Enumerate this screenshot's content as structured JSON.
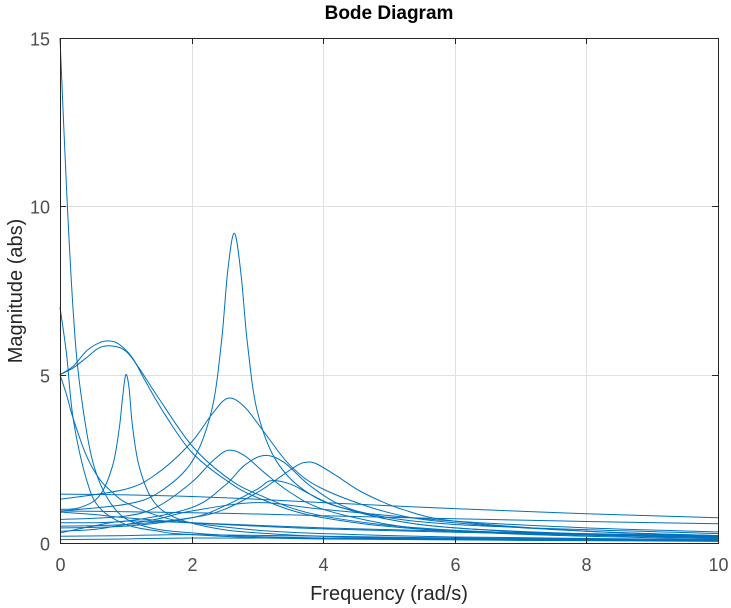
{
  "chart_data": {
    "type": "line",
    "title": "Bode Diagram",
    "xlabel": "Frequency  (rad/s)",
    "ylabel": "Magnitude (abs)",
    "xlim": [
      0,
      10
    ],
    "ylim": [
      0,
      15
    ],
    "xticks": [
      0,
      2,
      4,
      6,
      8,
      10
    ],
    "yticks": [
      0,
      5,
      10,
      15
    ],
    "grid": true,
    "line_color": "#0072BD",
    "series": [
      {
        "x": [
          0,
          0.1,
          0.2,
          0.3,
          0.5,
          0.8,
          1.2,
          2,
          4,
          10
        ],
        "y": [
          15,
          10.5,
          6.9,
          4.7,
          2.4,
          1.1,
          0.55,
          0.3,
          0.15,
          0.06
        ]
      },
      {
        "x": [
          0,
          0.1,
          0.2,
          0.4,
          0.6,
          1,
          1.5,
          2,
          4,
          10
        ],
        "y": [
          7,
          5.6,
          3.7,
          1.9,
          1.05,
          0.55,
          0.35,
          0.25,
          0.12,
          0.05
        ]
      },
      {
        "x": [
          0,
          0.2,
          0.4,
          0.6,
          0.75,
          0.9,
          1.1,
          1.3,
          1.6,
          2,
          2.5,
          3,
          4,
          6,
          10
        ],
        "y": [
          5,
          5.25,
          5.7,
          5.95,
          6,
          5.9,
          5.5,
          4.8,
          3.8,
          2.7,
          1.9,
          1.35,
          0.75,
          0.35,
          0.15
        ]
      },
      {
        "x": [
          0,
          0.2,
          0.4,
          0.6,
          0.8,
          1,
          1.2,
          1.5,
          2,
          2.5,
          3,
          4,
          6,
          10
        ],
        "y": [
          5,
          5.2,
          5.5,
          5.8,
          5.85,
          5.7,
          5.2,
          4.3,
          2.9,
          2.0,
          1.45,
          0.8,
          0.38,
          0.16
        ]
      },
      {
        "x": [
          0,
          0.1,
          0.2,
          0.4,
          0.6,
          0.8,
          1,
          1.5,
          2,
          3,
          4,
          6,
          10
        ],
        "y": [
          5,
          4.4,
          3.7,
          2.6,
          1.9,
          1.5,
          1.2,
          0.8,
          0.6,
          0.38,
          0.28,
          0.18,
          0.1
        ]
      },
      {
        "x": [
          0,
          0.3,
          0.6,
          0.8,
          0.9,
          0.95,
          1.0,
          1.05,
          1.1,
          1.2,
          1.4,
          1.7,
          2.2,
          3,
          5,
          10
        ],
        "y": [
          1.0,
          1.05,
          1.4,
          2.3,
          3.4,
          4.3,
          5.0,
          4.6,
          3.5,
          2.3,
          1.3,
          0.8,
          0.5,
          0.3,
          0.15,
          0.06
        ]
      },
      {
        "x": [
          0,
          1,
          1.5,
          2,
          2.3,
          2.45,
          2.55,
          2.65,
          2.75,
          2.85,
          3,
          3.3,
          3.8,
          4.5,
          6,
          10
        ],
        "y": [
          0.95,
          1.15,
          1.5,
          2.4,
          3.9,
          5.9,
          8.1,
          9.2,
          8.0,
          5.9,
          3.9,
          2.4,
          1.45,
          0.95,
          0.55,
          0.28
        ]
      },
      {
        "x": [
          0,
          1,
          1.5,
          2,
          2.3,
          2.55,
          2.8,
          3.1,
          3.5,
          4,
          5,
          6,
          8,
          10
        ],
        "y": [
          1.3,
          1.6,
          2.1,
          3.0,
          3.8,
          4.3,
          4.05,
          3.3,
          2.3,
          1.6,
          0.9,
          0.6,
          0.35,
          0.22
        ]
      },
      {
        "x": [
          0,
          1,
          1.5,
          2,
          2.3,
          2.55,
          2.8,
          3.1,
          3.5,
          4,
          5,
          6,
          8,
          10
        ],
        "y": [
          0.7,
          0.8,
          1.1,
          1.8,
          2.4,
          2.75,
          2.6,
          2.1,
          1.5,
          1.0,
          0.55,
          0.35,
          0.2,
          0.13
        ]
      },
      {
        "x": [
          0,
          1,
          2,
          2.5,
          2.8,
          3.1,
          3.4,
          3.8,
          4.3,
          5,
          6,
          8,
          10
        ],
        "y": [
          0.6,
          0.65,
          1.05,
          1.7,
          2.3,
          2.6,
          2.4,
          1.7,
          1.1,
          0.7,
          0.45,
          0.25,
          0.15
        ]
      },
      {
        "x": [
          0,
          1,
          2,
          2.5,
          3,
          3.3,
          3.6,
          3.75,
          3.9,
          4.2,
          4.6,
          5.2,
          6,
          8,
          10
        ],
        "y": [
          0.5,
          0.55,
          0.75,
          1.0,
          1.5,
          1.9,
          2.3,
          2.4,
          2.35,
          2.0,
          1.5,
          1.0,
          0.65,
          0.35,
          0.22
        ]
      },
      {
        "x": [
          0,
          1,
          2,
          2.5,
          3,
          3.2,
          3.5,
          3.8,
          4.2,
          5,
          6,
          8,
          10
        ],
        "y": [
          0.45,
          0.5,
          0.75,
          1.1,
          1.6,
          1.85,
          1.75,
          1.45,
          1.1,
          0.7,
          0.45,
          0.27,
          0.18
        ]
      },
      {
        "x": [
          0,
          1,
          2,
          3,
          4,
          6,
          8,
          10
        ],
        "y": [
          1.45,
          1.43,
          1.38,
          1.3,
          1.2,
          1.02,
          0.87,
          0.75
        ]
      },
      {
        "x": [
          0,
          1,
          2,
          3,
          4,
          6,
          8,
          10
        ],
        "y": [
          0.95,
          0.93,
          0.9,
          0.86,
          0.81,
          0.72,
          0.64,
          0.57
        ]
      },
      {
        "x": [
          0,
          0.5,
          1,
          2,
          3,
          4,
          6,
          8,
          10
        ],
        "y": [
          0.92,
          0.85,
          0.75,
          0.6,
          0.5,
          0.42,
          0.32,
          0.25,
          0.2
        ]
      },
      {
        "x": [
          0,
          0.5,
          1,
          2,
          4,
          6,
          8,
          10
        ],
        "y": [
          0.3,
          0.5,
          0.65,
          0.6,
          0.45,
          0.35,
          0.28,
          0.22
        ]
      },
      {
        "x": [
          0,
          0.5,
          1,
          1.5,
          2,
          3,
          4,
          6,
          8,
          10
        ],
        "y": [
          0.35,
          0.4,
          0.55,
          0.72,
          0.95,
          1.2,
          1.0,
          0.65,
          0.45,
          0.33
        ]
      },
      {
        "x": [
          0,
          1,
          2,
          4,
          6,
          8,
          10
        ],
        "y": [
          0.2,
          0.22,
          0.25,
          0.2,
          0.15,
          0.12,
          0.1
        ]
      },
      {
        "x": [
          0,
          1,
          2,
          4,
          6,
          8,
          10
        ],
        "y": [
          0.1,
          0.12,
          0.15,
          0.14,
          0.12,
          0.1,
          0.08
        ]
      }
    ]
  }
}
